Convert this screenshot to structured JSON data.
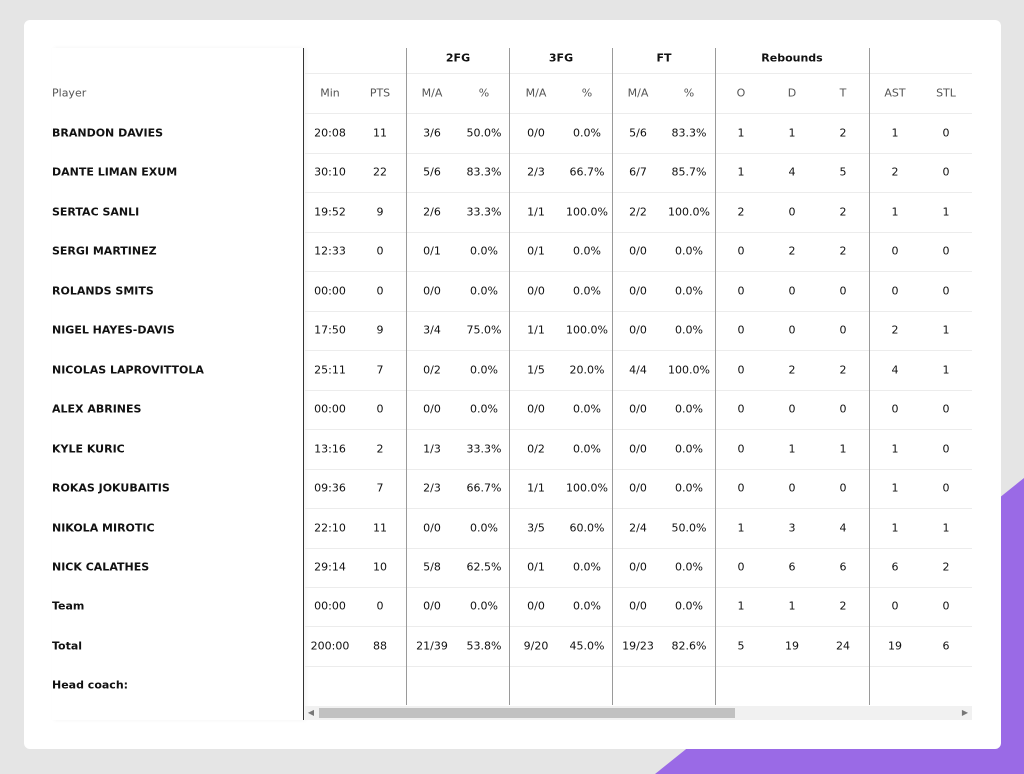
{
  "table": {
    "groups": [
      "2FG",
      "3FG",
      "FT",
      "Rebounds"
    ],
    "columns": [
      "Player",
      "Min",
      "PTS",
      "M/A",
      "%",
      "M/A",
      "%",
      "M/A",
      "%",
      "O",
      "D",
      "T",
      "AST",
      "STL"
    ],
    "rows": [
      [
        "BRANDON DAVIES",
        "20:08",
        "11",
        "3/6",
        "50.0%",
        "0/0",
        "0.0%",
        "5/6",
        "83.3%",
        "1",
        "1",
        "2",
        "1",
        "0"
      ],
      [
        "DANTE LIMAN EXUM",
        "30:10",
        "22",
        "5/6",
        "83.3%",
        "2/3",
        "66.7%",
        "6/7",
        "85.7%",
        "1",
        "4",
        "5",
        "2",
        "0"
      ],
      [
        "SERTAC SANLI",
        "19:52",
        "9",
        "2/6",
        "33.3%",
        "1/1",
        "100.0%",
        "2/2",
        "100.0%",
        "2",
        "0",
        "2",
        "1",
        "1"
      ],
      [
        "SERGI MARTINEZ",
        "12:33",
        "0",
        "0/1",
        "0.0%",
        "0/1",
        "0.0%",
        "0/0",
        "0.0%",
        "0",
        "2",
        "2",
        "0",
        "0"
      ],
      [
        "ROLANDS SMITS",
        "00:00",
        "0",
        "0/0",
        "0.0%",
        "0/0",
        "0.0%",
        "0/0",
        "0.0%",
        "0",
        "0",
        "0",
        "0",
        "0"
      ],
      [
        "NIGEL HAYES-DAVIS",
        "17:50",
        "9",
        "3/4",
        "75.0%",
        "1/1",
        "100.0%",
        "0/0",
        "0.0%",
        "0",
        "0",
        "0",
        "2",
        "1"
      ],
      [
        "NICOLAS LAPROVITTOLA",
        "25:11",
        "7",
        "0/2",
        "0.0%",
        "1/5",
        "20.0%",
        "4/4",
        "100.0%",
        "0",
        "2",
        "2",
        "4",
        "1"
      ],
      [
        "ALEX ABRINES",
        "00:00",
        "0",
        "0/0",
        "0.0%",
        "0/0",
        "0.0%",
        "0/0",
        "0.0%",
        "0",
        "0",
        "0",
        "0",
        "0"
      ],
      [
        "KYLE KURIC",
        "13:16",
        "2",
        "1/3",
        "33.3%",
        "0/2",
        "0.0%",
        "0/0",
        "0.0%",
        "0",
        "1",
        "1",
        "1",
        "0"
      ],
      [
        "ROKAS JOKUBAITIS",
        "09:36",
        "7",
        "2/3",
        "66.7%",
        "1/1",
        "100.0%",
        "0/0",
        "0.0%",
        "0",
        "0",
        "0",
        "1",
        "0"
      ],
      [
        "NIKOLA MIROTIC",
        "22:10",
        "11",
        "0/0",
        "0.0%",
        "3/5",
        "60.0%",
        "2/4",
        "50.0%",
        "1",
        "3",
        "4",
        "1",
        "1"
      ],
      [
        "NICK CALATHES",
        "29:14",
        "10",
        "5/8",
        "62.5%",
        "0/1",
        "0.0%",
        "0/0",
        "0.0%",
        "0",
        "6",
        "6",
        "6",
        "2"
      ],
      [
        "Team",
        "00:00",
        "0",
        "0/0",
        "0.0%",
        "0/0",
        "0.0%",
        "0/0",
        "0.0%",
        "1",
        "1",
        "2",
        "0",
        "0"
      ],
      [
        "Total",
        "200:00",
        "88",
        "21/39",
        "53.8%",
        "9/20",
        "45.0%",
        "19/23",
        "82.6%",
        "5",
        "19",
        "24",
        "19",
        "6"
      ]
    ],
    "footer": "Head coach:"
  }
}
